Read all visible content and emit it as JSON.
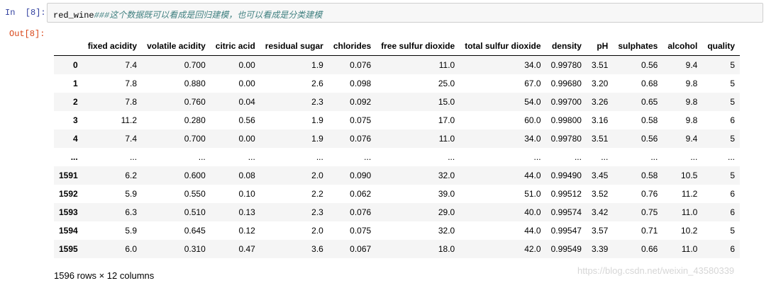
{
  "input_prompt": "In  [8]:",
  "code": {
    "variable": "red_wine",
    "comment": "###这个数据既可以看成是回归建模，也可以看成是分类建模"
  },
  "output_prompt": "Out[8]:",
  "table": {
    "columns": [
      "",
      "fixed acidity",
      "volatile acidity",
      "citric acid",
      "residual sugar",
      "chlorides",
      "free sulfur dioxide",
      "total sulfur dioxide",
      "density",
      "pH",
      "sulphates",
      "alcohol",
      "quality"
    ],
    "rows": [
      [
        "0",
        "7.4",
        "0.700",
        "0.00",
        "1.9",
        "0.076",
        "11.0",
        "34.0",
        "0.99780",
        "3.51",
        "0.56",
        "9.4",
        "5"
      ],
      [
        "1",
        "7.8",
        "0.880",
        "0.00",
        "2.6",
        "0.098",
        "25.0",
        "67.0",
        "0.99680",
        "3.20",
        "0.68",
        "9.8",
        "5"
      ],
      [
        "2",
        "7.8",
        "0.760",
        "0.04",
        "2.3",
        "0.092",
        "15.0",
        "54.0",
        "0.99700",
        "3.26",
        "0.65",
        "9.8",
        "5"
      ],
      [
        "3",
        "11.2",
        "0.280",
        "0.56",
        "1.9",
        "0.075",
        "17.0",
        "60.0",
        "0.99800",
        "3.16",
        "0.58",
        "9.8",
        "6"
      ],
      [
        "4",
        "7.4",
        "0.700",
        "0.00",
        "1.9",
        "0.076",
        "11.0",
        "34.0",
        "0.99780",
        "3.51",
        "0.56",
        "9.4",
        "5"
      ],
      [
        "...",
        "...",
        "...",
        "...",
        "...",
        "...",
        "...",
        "...",
        "...",
        "...",
        "...",
        "...",
        "..."
      ],
      [
        "1591",
        "6.2",
        "0.600",
        "0.08",
        "2.0",
        "0.090",
        "32.0",
        "44.0",
        "0.99490",
        "3.45",
        "0.58",
        "10.5",
        "5"
      ],
      [
        "1592",
        "5.9",
        "0.550",
        "0.10",
        "2.2",
        "0.062",
        "39.0",
        "51.0",
        "0.99512",
        "3.52",
        "0.76",
        "11.2",
        "6"
      ],
      [
        "1593",
        "6.3",
        "0.510",
        "0.13",
        "2.3",
        "0.076",
        "29.0",
        "40.0",
        "0.99574",
        "3.42",
        "0.75",
        "11.0",
        "6"
      ],
      [
        "1594",
        "5.9",
        "0.645",
        "0.12",
        "2.0",
        "0.075",
        "32.0",
        "44.0",
        "0.99547",
        "3.57",
        "0.71",
        "10.2",
        "5"
      ],
      [
        "1595",
        "6.0",
        "0.310",
        "0.47",
        "3.6",
        "0.067",
        "18.0",
        "42.0",
        "0.99549",
        "3.39",
        "0.66",
        "11.0",
        "6"
      ]
    ]
  },
  "rows_info": "1596 rows × 12 columns",
  "watermark": "https://blog.csdn.net/weixin_43580339"
}
